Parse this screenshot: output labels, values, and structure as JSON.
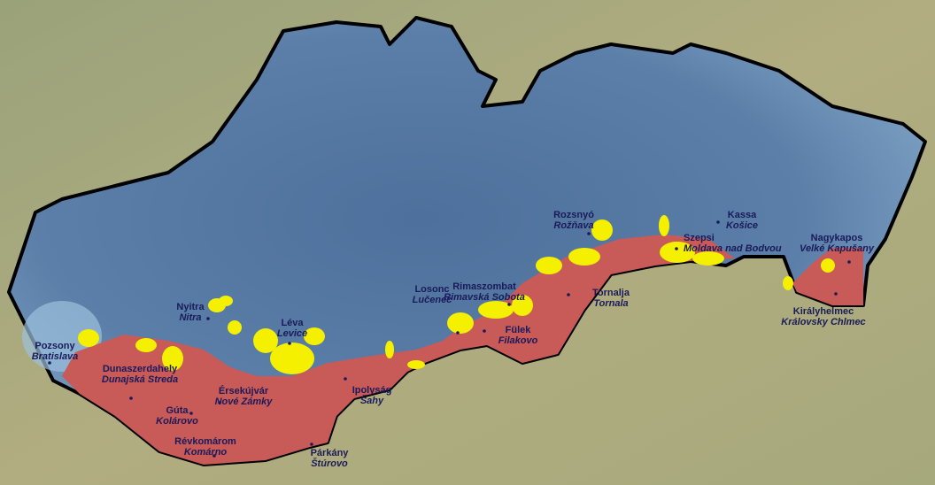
{
  "map": {
    "colors": {
      "background": "#a9a77a",
      "country_fill": "#5b7fa8",
      "country_border": "#000000",
      "region_red": "#c85a58",
      "region_yellow": "#f4f000",
      "label": "#1a1a5a"
    },
    "cities": [
      {
        "hu": "Pozsony",
        "sk": "Bratislava"
      },
      {
        "hu": "Nyitra",
        "sk": "Nitra"
      },
      {
        "hu": "Léva",
        "sk": "Levice"
      },
      {
        "hu": "Dunaszerdahely",
        "sk": "Dunajská Streda"
      },
      {
        "hu": "Érsekújvár",
        "sk": "Nové Zámky"
      },
      {
        "hu": "Gúta",
        "sk": "Kolárovo"
      },
      {
        "hu": "Révkomárom",
        "sk": "Komárno"
      },
      {
        "hu": "Párkány",
        "sk": "Štúrovo"
      },
      {
        "hu": "Ipolyság",
        "sk": "Šahy"
      },
      {
        "hu": "Losonc",
        "sk": "Lučenec"
      },
      {
        "hu": "Rimaszombat",
        "sk": "Rimavská Sobota"
      },
      {
        "hu": "Fülek",
        "sk": "Filakovo"
      },
      {
        "hu": "Rozsnyó",
        "sk": "Rožňava"
      },
      {
        "hu": "Tornalja",
        "sk": "Tornala"
      },
      {
        "hu": "Szepsi",
        "sk": "Moldava nad Bodvou"
      },
      {
        "hu": "Kassa",
        "sk": "Košice"
      },
      {
        "hu": "Nagykapos",
        "sk": "Velké Kapušany"
      },
      {
        "hu": "Királyhelmec",
        "sk": "Královsky Chlmec"
      }
    ]
  }
}
